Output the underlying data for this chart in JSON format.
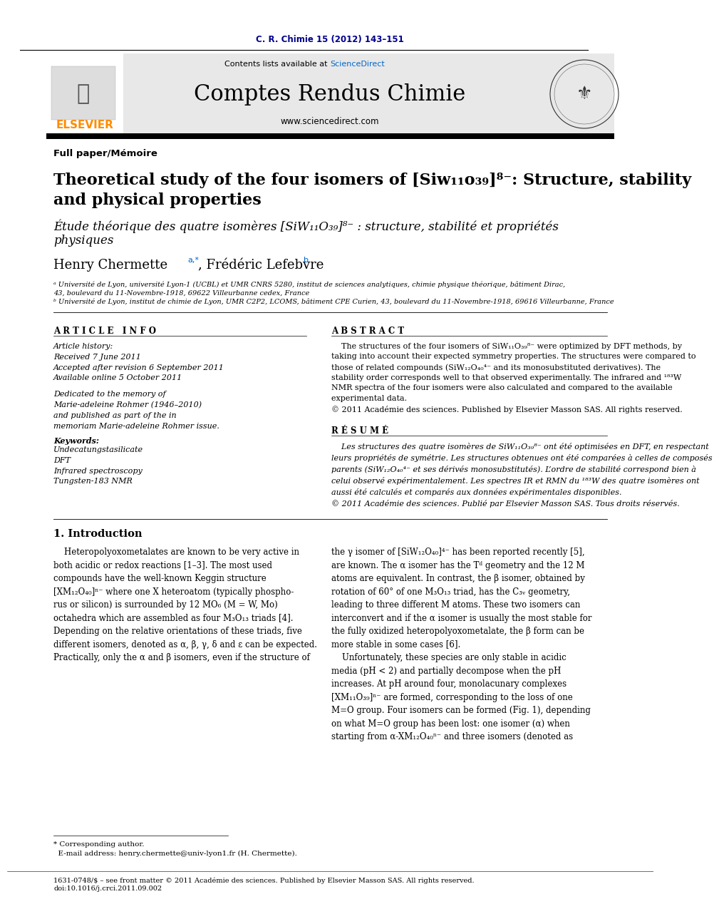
{
  "journal_ref": "C. R. Chimie 15 (2012) 143–151",
  "journal_name": "Comptes Rendus Chimie",
  "journal_url": "www.sciencedirect.com",
  "contents_text": "Contents lists available at ScienceDirect",
  "sciencedirect_text": "ScienceDirect",
  "section_label": "Full paper/Mémoire",
  "title_en_line1": "Theoretical study of the four isomers of [Siw₁₁o₃₉]⁸⁻: Structure, stability",
  "title_en_line2": "and physical properties",
  "title_fr_line1": "Étude théorique des quatre isomères [SiW₁₁O₃₉]⁸⁻ : structure, stabilité et propriétés",
  "title_fr_line2": "physiques",
  "author_name1": "Henry Chermette",
  "author_sup1": "a,*",
  "author_sep": ", ",
  "author_name2": "Frédéric Lefebvre",
  "author_sup2": "b",
  "affil_a": "ᵃ Université de Lyon, université Lyon-1 (UCBL) et UMR CNRS 5280, institut de sciences analytiques, chimie physique théorique, bâtiment Dirac,\n43, boulevard du 11-Novembre-1918, 69622 Villeurbanne cedex, France",
  "affil_b": "ᵇ Université de Lyon, institut de chimie de Lyon, UMR C2P2, LCOMS, bâtiment CPE Curien, 43, boulevard du 11-Novembre-1918, 69616 Villeurbanne, France",
  "article_info_header": "A R T I C L E   I N F O",
  "abstract_header": "A B S T R A C T",
  "article_history": "Article history:\nReceived 7 June 2011\nAccepted after revision 6 September 2011\nAvailable online 5 October 2011",
  "dedication": "Dedicated to the memory of\nMarie-adeleine Rohmer (1946–2010)\nand published as part of the in\nmemoriam Marie-adeleine Rohmer issue.",
  "keywords_header": "Keywords:",
  "keywords": "Undecatungstasilicate\nDFT\nInfrared spectroscopy\nTungsten-183 NMR",
  "abstract_en": "    The structures of the four isomers of SiW₁₁O₃₉⁸⁻ were optimized by DFT methods, by\ntaking into account their expected symmetry properties. The structures were compared to\nthose of related compounds (SiW₁₂O₄₀⁴⁻ and its monosubstituted derivatives). The\nstability order corresponds well to that observed experimentally. The infrared and ¹⁸³W\nNMR spectra of the four isomers were also calculated and compared to the available\nexperimental data.\n© 2011 Académie des sciences. Published by Elsevier Masson SAS. All rights reserved.",
  "resume_header": "R É S U M É",
  "abstract_fr": "    Les structures des quatre isomères de SiW₁₁O₃₉⁸⁻ ont été optimisées en DFT, en respectant\nleurs propriétés de symétrie. Les structures obtenues ont été comparées à celles de composés\nparents (SiW₁₂O₄₀⁴⁻ et ses dérivés monosubstitutés). L’ordre de stabilité correspond bien à\ncelui observé expérimentalement. Les spectres IR et RMN du ¹⁸³W des quatre isomères ont\naussi été calculés et comparés aux données expérimentales disponibles.\n© 2011 Académie des sciences. Publié par Elsevier Masson SAS. Tous droits réservés.",
  "intro_header": "1. Introduction",
  "intro_left": "    Heteropolyoxometalates are known to be very active in\nboth acidic or redox reactions [1–3]. The most used\ncompounds have the well-known Keggin structure\n[XM₁₂O₄₀]ⁿ⁻ where one X heteroatom (typically phospho-\nrus or silicon) is surrounded by 12 MO₆ (M = W, Mo)\noctahedra which are assembled as four M₃O₁₃ triads [4].\nDepending on the relative orientations of these triads, five\ndifferent isomers, denoted as α, β, γ, δ and ε can be expected.\nPractically, only the α and β isomers, even if the structure of",
  "intro_right": "the γ isomer of [SiW₁₂O₄₀]⁴⁻ has been reported recently [5],\nare known. The α isomer has the Tᵈ geometry and the 12 M\natoms are equivalent. In contrast, the β isomer, obtained by\nrotation of 60° of one M₃O₁₃ triad, has the C₃ᵥ geometry,\nleading to three different M atoms. These two isomers can\ninterconvert and if the α isomer is usually the most stable for\nthe fully oxidized heteropolyoxometalate, the β form can be\nmore stable in some cases [6].\n    Unfortunately, these species are only stable in acidic\nmedia (pH < 2) and partially decompose when the pH\nincreases. At pH around four, monolacunary complexes\n[XM₁₁O₃₉]ⁿ⁻ are formed, corresponding to the loss of one\nM=O group. Four isomers can be formed (Fig. 1), depending\non what M=O group has been lost: one isomer (α) when\nstarting from α-XM₁₂O₄₀ⁿ⁻ and three isomers (denoted as",
  "footnote": "* Corresponding author.\n  E-mail address: henry.chermette@univ-lyon1.fr (H. Chermette).",
  "footer_line1": "1631-0748/$ – see front matter © 2011 Académie des sciences. Published by Elsevier Masson SAS. All rights reserved.",
  "footer_line2": "doi:10.1016/j.crci.2011.09.002",
  "bg_header_color": "#e8e8e8",
  "elsevier_color": "#ff8c00",
  "sciencedirect_link_color": "#0066cc",
  "journal_ref_color": "#00008b",
  "black": "#000000"
}
